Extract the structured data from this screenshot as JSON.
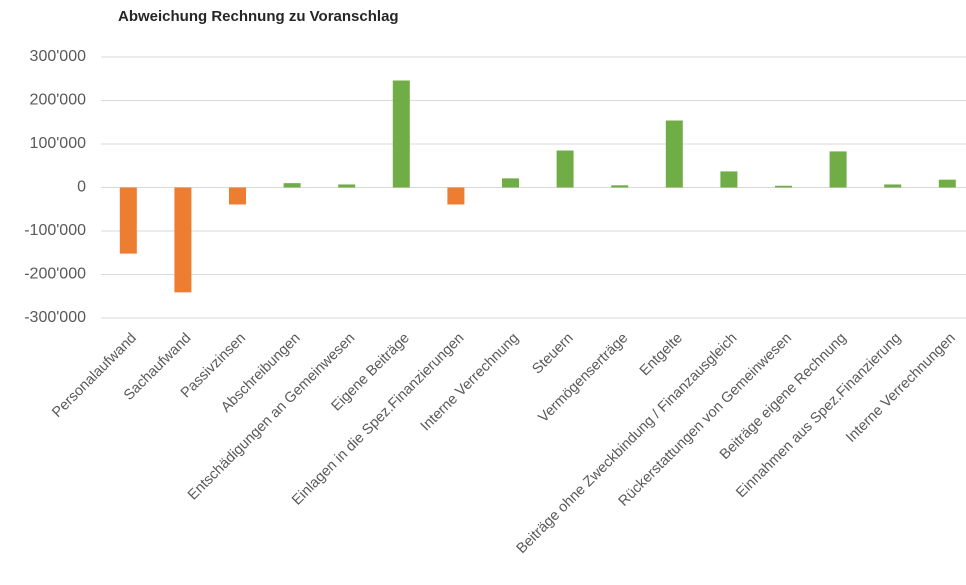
{
  "chart_data": {
    "type": "bar",
    "title": "Abweichung Rechnung zu Voranschlag",
    "categories": [
      "Personalaufwand",
      "Sachaufwand",
      "Passivzinsen",
      "Abschreibungen",
      "Entschädigungen an Gemeinwesen",
      "Eigene Beiträge",
      "Einlagen in die Spez.Finanzierungen",
      "Interne Verrechnung",
      "Steuern",
      "Vermögenserträge",
      "Entgelte",
      "Beiträge ohne Zweckbindung / Finanzausgleich",
      "Rückerstattungen von Gemeinwesen",
      "Beiträge eigene Rechnung",
      "Einnahmen aus Spez.Finanzierung",
      "Interne Verrechnungen"
    ],
    "values": [
      -152000,
      -241000,
      -39000,
      10000,
      7000,
      246000,
      -39000,
      21000,
      85000,
      5000,
      154000,
      37000,
      4000,
      83000,
      7000,
      18000
    ],
    "colors": [
      "#ed7d31",
      "#ed7d31",
      "#ed7d31",
      "#70ad47",
      "#70ad47",
      "#70ad47",
      "#ed7d31",
      "#70ad47",
      "#70ad47",
      "#70ad47",
      "#70ad47",
      "#70ad47",
      "#70ad47",
      "#70ad47",
      "#70ad47",
      "#70ad47"
    ],
    "ylim": [
      -300000,
      300000
    ],
    "yticks": [
      {
        "value": -300000,
        "label": "-300'000"
      },
      {
        "value": -200000,
        "label": "-200'000"
      },
      {
        "value": -100000,
        "label": "-100'000"
      },
      0,
      {
        "value": 100000,
        "label": "100'000"
      },
      {
        "value": 200000,
        "label": "200'000"
      },
      {
        "value": 300000,
        "label": "300'000"
      }
    ],
    "grid": true
  }
}
